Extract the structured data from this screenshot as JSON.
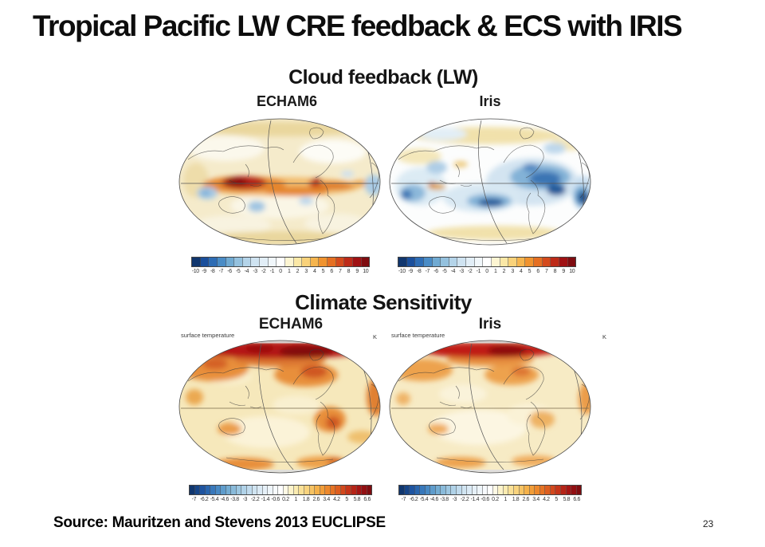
{
  "slide": {
    "title": "Tropical Pacific LW CRE feedback & ECS with IRIS",
    "source": "Source: Mauritzen and Stevens 2013 EUCLIPSE",
    "page_number": "23"
  },
  "figure1": {
    "heading": "Cloud feedback (LW)",
    "panels": [
      {
        "model": "ECHAM6"
      },
      {
        "model": "Iris"
      }
    ],
    "colorbar_cells": 21,
    "colorbar_ticks": [
      "-10",
      "-9",
      "-8",
      "-7",
      "-6",
      "-5",
      "-4",
      "-3",
      "-2",
      "-1",
      "0",
      "1",
      "2",
      "3",
      "4",
      "5",
      "6",
      "7",
      "8",
      "9",
      "10"
    ]
  },
  "figure2": {
    "heading": "Climate Sensitivity",
    "panels": [
      {
        "model": "ECHAM6",
        "var_label": "surface temperature",
        "unit": "K"
      },
      {
        "model": "Iris",
        "var_label": "surface temperature",
        "unit": "K"
      }
    ],
    "colorbar_cells": 35,
    "colorbar_ticks": [
      "-7",
      "-6.2",
      "-5.4",
      "-4.6",
      "-3.8",
      "-3",
      "-2.2",
      "-1.4",
      "-0.6",
      "0.2",
      "1",
      "1.8",
      "2.6",
      "3.4",
      "4.2",
      "5",
      "5.8",
      "6.6"
    ]
  },
  "palette": {
    "diverging": [
      "#10366e",
      "#1a4f9c",
      "#2e6db5",
      "#4a8cc6",
      "#70aad2",
      "#94c1de",
      "#b4d4e9",
      "#cfe3f1",
      "#e2eef7",
      "#f1f7fb",
      "#ffffff",
      "#fdf5d2",
      "#fbe8a6",
      "#f9d27a",
      "#f6b54e",
      "#f0932f",
      "#e56f22",
      "#d44a1c",
      "#bd2a18",
      "#a01113",
      "#7f0c10"
    ]
  },
  "chart_data": [
    {
      "type": "heatmap",
      "title": "Cloud feedback (LW)",
      "panel": "ECHAM6",
      "projection": "global elliptical (Pacific-centered)",
      "colorbar_range": [
        -10,
        10
      ],
      "colorbar_ticks": [
        -10,
        -9,
        -8,
        -7,
        -6,
        -5,
        -4,
        -3,
        -2,
        -1,
        0,
        1,
        2,
        3,
        4,
        5,
        6,
        7,
        8,
        9,
        10
      ],
      "legend_position": "bottom",
      "features": [
        "strong positive (dark red ~8-10) band over tropical west-central Pacific",
        "positive (orange ~4-6) streak along equatorial Pacific to South America",
        "weak negative (blue ~ -2 to -4) patches in east Indian Ocean, SE Pacific and near Peru",
        "weak positive pale-yellow background elsewhere"
      ]
    },
    {
      "type": "heatmap",
      "title": "Cloud feedback (LW)",
      "panel": "Iris",
      "projection": "global elliptical (Pacific-centered)",
      "colorbar_range": [
        -10,
        10
      ],
      "colorbar_ticks": [
        -10,
        -9,
        -8,
        -7,
        -6,
        -5,
        -4,
        -3,
        -2,
        -1,
        0,
        1,
        2,
        3,
        4,
        5,
        6,
        7,
        8,
        9,
        10
      ],
      "legend_position": "bottom",
      "features": [
        "widespread negative (blue) anomalies over tropical Pacific, Caribbean/Atlantic, South America and Africa",
        "dark blue minima (~ -6 to -8) over tropical Atlantic and central South Pacific",
        "small positive (orange) spot over the Maritime Continent",
        "weak positive (pale yellow) bands at northern and southern mid-latitudes"
      ]
    },
    {
      "type": "heatmap",
      "title": "Climate Sensitivity",
      "panel": "ECHAM6",
      "variable": "surface temperature",
      "units": "K",
      "projection": "global elliptical (Pacific-centered)",
      "colorbar_range": [
        -7,
        6.6
      ],
      "colorbar_tick_step": 0.8,
      "colorbar_ticks": [
        -7,
        -6.2,
        -5.4,
        -4.6,
        -3.8,
        -3,
        -2.2,
        -1.4,
        -0.6,
        0.2,
        1,
        1.8,
        2.6,
        3.4,
        4.2,
        5,
        5.8,
        6.6
      ],
      "legend_position": "bottom",
      "features": [
        "warming everywhere (yellow to orange)",
        "strongest warming (dark red, >6 K) across the Arctic",
        "enhanced warming (orange, ~4-5 K) over continents and Antarctic coast",
        "weakest warming (pale yellow, ~1-2 K) over Southern Ocean and subtropical oceans"
      ]
    },
    {
      "type": "heatmap",
      "title": "Climate Sensitivity",
      "panel": "Iris",
      "variable": "surface temperature",
      "units": "K",
      "projection": "global elliptical (Pacific-centered)",
      "colorbar_range": [
        -7,
        6.6
      ],
      "colorbar_tick_step": 0.8,
      "colorbar_ticks": [
        -7,
        -6.2,
        -5.4,
        -4.6,
        -3.8,
        -3,
        -2.2,
        -1.4,
        -0.6,
        0.2,
        1,
        1.8,
        2.6,
        3.4,
        4.2,
        5,
        5.8,
        6.6
      ],
      "legend_position": "bottom",
      "features": [
        "same spatial pattern as ECHAM6 but weaker overall warming",
        "Arctic maximum (dark red) remains",
        "oceans mostly pale yellow (~1-2 K)"
      ]
    }
  ]
}
